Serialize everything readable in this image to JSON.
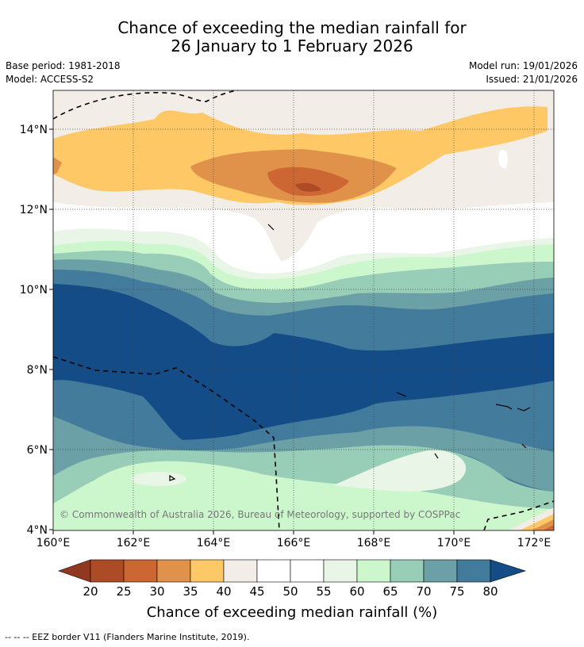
{
  "title_line1": "Chance of exceeding the median rainfall for",
  "title_line2": "26 January to 1 February 2026",
  "base_period": "Base period: 1981-2018",
  "model": "Model: ACCESS-S2",
  "model_run": "Model run: 19/01/2026",
  "issued": "Issued: 21/01/2026",
  "copyright": "© Commonwealth of Australia 2026, Bureau of Meteorology, supported by COSPPac",
  "lon_labels": [
    "160°E",
    "162°E",
    "164°E",
    "166°E",
    "168°E",
    "170°E",
    "172°E"
  ],
  "lat_labels": [
    "14°N",
    "12°N",
    "10°N",
    "8°N",
    "6°N",
    "4°N"
  ],
  "colorbar": {
    "title": "Chance of exceeding median rainfall (%)",
    "ticks": [
      "20",
      "25",
      "30",
      "35",
      "40",
      "45",
      "50",
      "55",
      "60",
      "65",
      "70",
      "75",
      "80"
    ],
    "colors": [
      "#ad4b27",
      "#cc6633",
      "#e0924a",
      "#fdc865",
      "#f2ede6",
      "#ffffff",
      "#ffffff",
      "#e9f5e6",
      "#ccf7cc",
      "#98cdb8",
      "#6ba0a6",
      "#437b9c"
    ],
    "under_color": "#923821",
    "over_color": "#134c86"
  },
  "footnote": "--  --  -- EEZ border V11 (Flanders Marine Institute, 2019)."
}
